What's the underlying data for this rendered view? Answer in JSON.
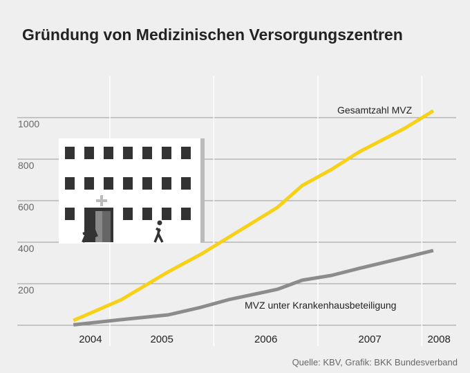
{
  "chart_data": {
    "type": "line",
    "title": "Gründung von Medizinischen Versorgungszentren",
    "source": "Quelle: KBV, Grafik: BKK Bundesverband",
    "periods": [
      "2004",
      "2005",
      "2006",
      "2007",
      "2008"
    ],
    "x": [
      2004.65,
      2005.11,
      2005.56,
      2005.88,
      2006.14,
      2006.61,
      2006.85,
      2007.13,
      2007.39,
      2007.84,
      2008.11
    ],
    "xlim": [
      2004.11,
      2008.33
    ],
    "xticks": [
      2005,
      2006,
      2007,
      2008
    ],
    "ylim": [
      0,
      1000
    ],
    "yticks": [
      200,
      400,
      600,
      800,
      1000
    ],
    "grid": true,
    "series": [
      {
        "name": "Gesamtzahl MVZ",
        "color": "#f7d117",
        "values": [
          23,
          123,
          257,
          343,
          423,
          567,
          673,
          750,
          833,
          950,
          1033
        ]
      },
      {
        "name": "MVZ unter Krankenhausbeteiligung",
        "color": "#8c8c8c",
        "values": [
          2,
          27,
          50,
          87,
          123,
          173,
          217,
          240,
          273,
          327,
          360
        ]
      }
    ]
  }
}
